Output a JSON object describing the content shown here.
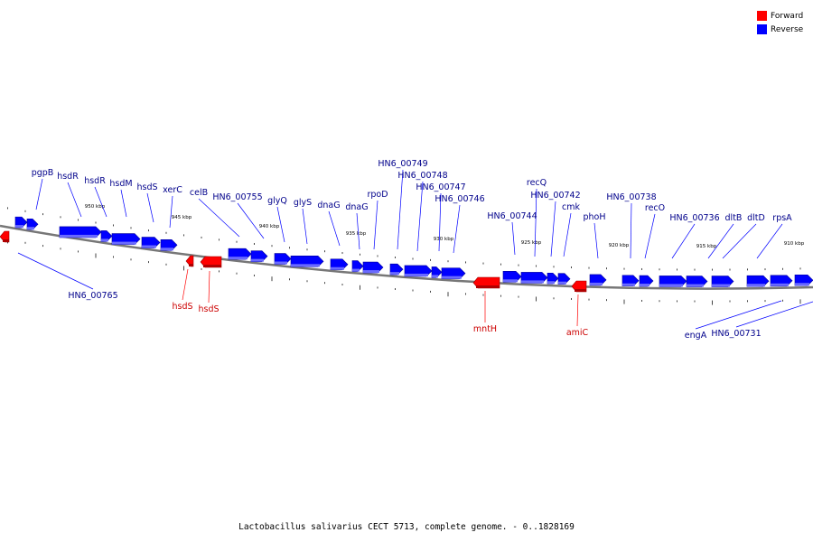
{
  "legend": {
    "forward": {
      "label": "Forward",
      "color": "#ff0000"
    },
    "reverse": {
      "label": "Reverse",
      "color": "#0000ff"
    }
  },
  "colors": {
    "forward_text": "#cc0000",
    "reverse_text": "#00008b",
    "backbone": "#777777"
  },
  "caption": "Lactobacillus salivarius CECT 5713, complete genome. - 0..1828169",
  "ticks": [
    "950 kbp",
    "945 kbp",
    "940 kbp",
    "935 kbp",
    "930 kbp",
    "925 kbp",
    "920 kbp",
    "915 kbp",
    "910 kbp"
  ],
  "genes": {
    "reverse": [
      "pgpB",
      "hsdR",
      "hsdR",
      "hsdM",
      "hsdS",
      "xerC",
      "celB",
      "HN6_00755",
      "glyQ",
      "glyS",
      "dnaG",
      "dnaG",
      "rpoD",
      "HN6_00749",
      "HN6_00748",
      "HN6_00747",
      "HN6_00746",
      "HN6_00744",
      "recQ",
      "HN6_00742",
      "cmk",
      "phoH",
      "HN6_00738",
      "recO",
      "HN6_00736",
      "dltB",
      "dltD",
      "rpsA",
      "HN6_00765",
      "engA",
      "HN6_00731"
    ],
    "forward": [
      "hsdS",
      "hsdS",
      "mntH",
      "amiC"
    ]
  }
}
